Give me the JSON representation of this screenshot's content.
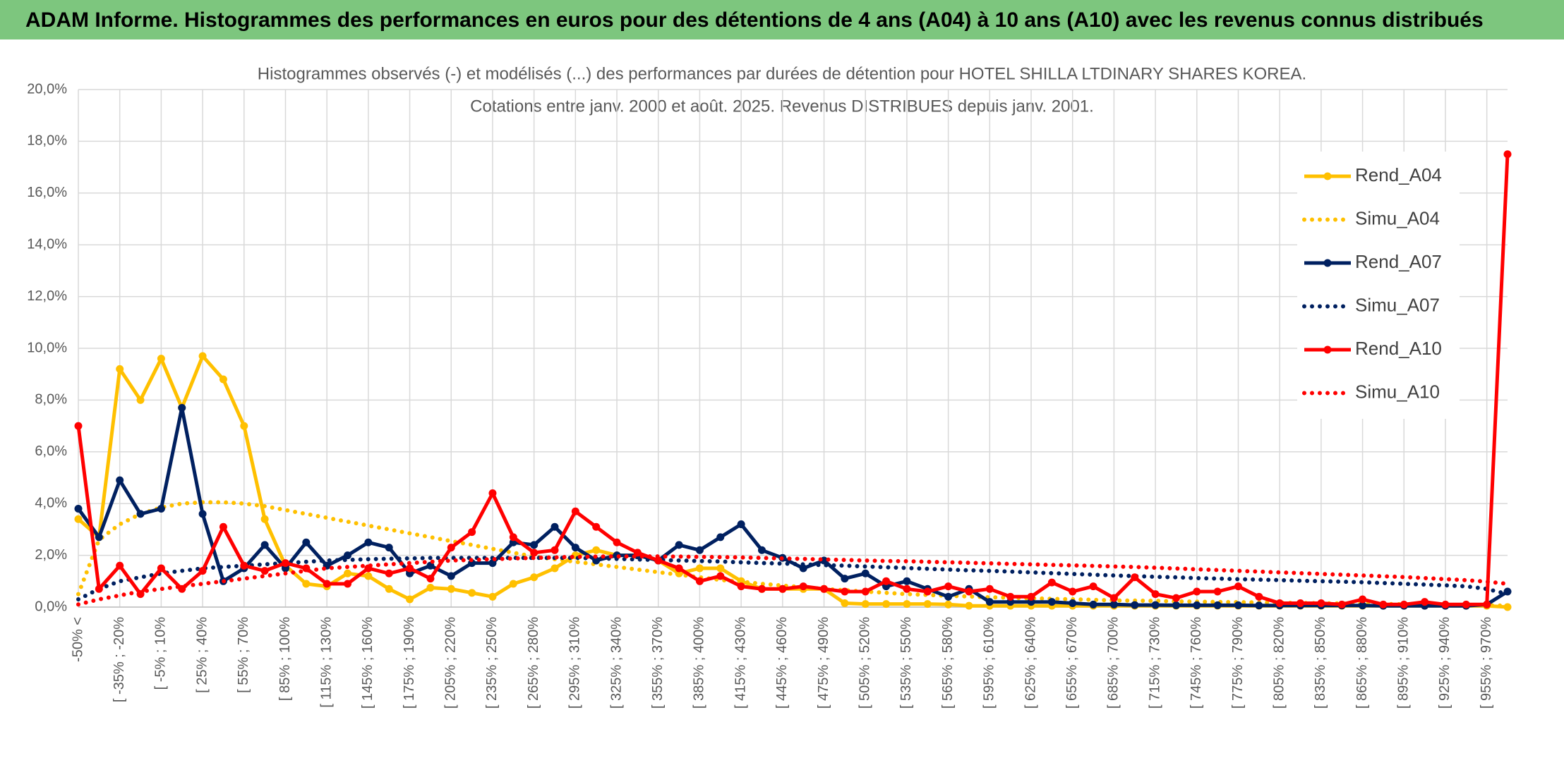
{
  "header": {
    "title": "ADAM Informe. Histogrammes des performances en euros pour des détentions de 4 ans (A04) à 10 ans (A10) avec les revenus connus distribués"
  },
  "chart_data": {
    "type": "line",
    "title": "Histogrammes observés (-) et modélisés (...) des performances par durées de détention pour HOTEL SHILLA LTDINARY SHARES KOREA.",
    "subtitle": "Cotations entre janv. 2000 et août. 2025. Revenus DISTRIBUES depuis janv. 2001.",
    "categories": [
      "-50% <",
      null,
      "[ -35% ; -20%",
      null,
      "[ -5% ; 10%",
      null,
      "[ 25% ; 40%",
      null,
      "[ 55% ; 70%",
      null,
      "[ 85% ; 100%",
      null,
      "[ 115% ; 130%",
      null,
      "[ 145% ; 160%",
      null,
      "[ 175% ; 190%",
      null,
      "[ 205% ; 220%",
      null,
      "[ 235% ; 250%",
      null,
      "[ 265% ; 280%",
      null,
      "[ 295% ; 310%",
      null,
      "[ 325% ; 340%",
      null,
      "[ 355% ; 370%",
      null,
      "[ 385% ; 400%",
      null,
      "[ 415% ; 430%",
      null,
      "[ 445% ; 460%",
      null,
      "[ 475% ; 490%",
      null,
      "[ 505% ; 520%",
      null,
      "[ 535% ; 550%",
      null,
      "[ 565% ; 580%",
      null,
      "[ 595% ; 610%",
      null,
      "[ 625% ; 640%",
      null,
      "[ 655% ; 670%",
      null,
      "[ 685% ; 700%",
      null,
      "[ 715% ; 730%",
      null,
      "[ 745% ; 760%",
      null,
      "[ 775% ; 790%",
      null,
      "[ 805% ; 820%",
      null,
      "[ 835% ; 850%",
      null,
      "[ 865% ; 880%",
      null,
      "[ 895% ; 910%",
      null,
      "[ 925% ; 940%",
      null,
      "[ 955% ; 970%",
      null
    ],
    "series": [
      {
        "name": "Rend_A04",
        "color": "#ffc000",
        "style": "solid",
        "markers": true,
        "values": [
          3.4,
          2.7,
          9.2,
          8.0,
          9.6,
          7.7,
          9.7,
          8.8,
          7.0,
          3.4,
          1.6,
          0.9,
          0.8,
          1.3,
          1.2,
          0.7,
          0.3,
          0.75,
          0.7,
          0.55,
          0.4,
          0.9,
          1.15,
          1.5,
          2.0,
          2.2,
          2.0,
          2.0,
          1.8,
          1.3,
          1.5,
          1.5,
          1.0,
          0.7,
          0.7,
          0.7,
          0.7,
          0.15,
          0.12,
          0.12,
          0.12,
          0.12,
          0.1,
          0.05,
          0.05,
          0.05,
          0.05,
          0.05,
          0.05,
          0.05,
          0.05,
          0.05,
          0.05,
          0.05,
          0.05,
          0.05,
          0.05,
          0.05,
          0.05,
          0.05,
          0.05,
          0.05,
          0.05,
          0.05,
          0.05,
          0.05,
          0.05,
          0.05,
          0.05,
          0.0
        ]
      },
      {
        "name": "Simu_A04",
        "color": "#ffc000",
        "style": "dotted",
        "markers": false,
        "values": [
          0.5,
          2.6,
          3.2,
          3.6,
          3.85,
          4.0,
          4.05,
          4.05,
          4.0,
          3.9,
          3.75,
          3.6,
          3.45,
          3.3,
          3.15,
          3.0,
          2.85,
          2.7,
          2.55,
          2.4,
          2.25,
          2.1,
          1.95,
          1.85,
          1.75,
          1.65,
          1.55,
          1.45,
          1.35,
          1.25,
          1.15,
          1.05,
          0.98,
          0.9,
          0.83,
          0.77,
          0.7,
          0.65,
          0.6,
          0.55,
          0.5,
          0.47,
          0.44,
          0.41,
          0.38,
          0.36,
          0.34,
          0.32,
          0.3,
          0.28,
          0.26,
          0.25,
          0.24,
          0.22,
          0.21,
          0.2,
          0.19,
          0.18,
          0.17,
          0.16,
          0.15,
          0.14,
          0.13,
          0.12,
          0.11,
          0.1,
          0.09,
          0.08,
          0.07,
          0.05
        ]
      },
      {
        "name": "Rend_A07",
        "color": "#002060",
        "style": "solid",
        "markers": true,
        "values": [
          3.8,
          2.7,
          4.9,
          3.6,
          3.8,
          7.7,
          3.6,
          1.0,
          1.5,
          2.4,
          1.5,
          2.5,
          1.6,
          2.0,
          2.5,
          2.3,
          1.3,
          1.6,
          1.2,
          1.7,
          1.7,
          2.5,
          2.4,
          3.1,
          2.3,
          1.8,
          2.0,
          2.0,
          1.8,
          2.4,
          2.2,
          2.7,
          3.2,
          2.2,
          1.9,
          1.5,
          1.8,
          1.1,
          1.3,
          0.8,
          1.0,
          0.7,
          0.4,
          0.7,
          0.2,
          0.2,
          0.2,
          0.2,
          0.15,
          0.1,
          0.1,
          0.08,
          0.08,
          0.07,
          0.07,
          0.07,
          0.07,
          0.06,
          0.06,
          0.06,
          0.06,
          0.06,
          0.06,
          0.05,
          0.05,
          0.05,
          0.05,
          0.05,
          0.1,
          0.6
        ]
      },
      {
        "name": "Simu_A07",
        "color": "#002060",
        "style": "dotted",
        "markers": false,
        "values": [
          0.3,
          0.7,
          1.0,
          1.15,
          1.3,
          1.4,
          1.5,
          1.55,
          1.6,
          1.65,
          1.7,
          1.75,
          1.8,
          1.82,
          1.85,
          1.87,
          1.88,
          1.9,
          1.9,
          1.9,
          1.9,
          1.9,
          1.9,
          1.9,
          1.9,
          1.88,
          1.86,
          1.84,
          1.82,
          1.8,
          1.78,
          1.76,
          1.73,
          1.7,
          1.68,
          1.65,
          1.62,
          1.6,
          1.57,
          1.54,
          1.51,
          1.48,
          1.45,
          1.42,
          1.4,
          1.37,
          1.34,
          1.31,
          1.28,
          1.25,
          1.22,
          1.2,
          1.17,
          1.15,
          1.12,
          1.1,
          1.08,
          1.06,
          1.04,
          1.02,
          1.0,
          0.98,
          0.96,
          0.93,
          0.9,
          0.87,
          0.84,
          0.8,
          0.7,
          0.5
        ]
      },
      {
        "name": "Rend_A10",
        "color": "#ff0000",
        "style": "solid",
        "markers": true,
        "values": [
          7.0,
          0.7,
          1.6,
          0.5,
          1.5,
          0.7,
          1.4,
          3.1,
          1.6,
          1.4,
          1.7,
          1.5,
          0.9,
          0.9,
          1.5,
          1.3,
          1.5,
          1.1,
          2.3,
          2.9,
          4.4,
          2.7,
          2.1,
          2.2,
          3.7,
          3.1,
          2.5,
          2.1,
          1.8,
          1.5,
          1.0,
          1.2,
          0.8,
          0.7,
          0.7,
          0.8,
          0.7,
          0.6,
          0.6,
          1.0,
          0.7,
          0.6,
          0.8,
          0.6,
          0.7,
          0.4,
          0.4,
          0.95,
          0.6,
          0.8,
          0.35,
          1.15,
          0.5,
          0.35,
          0.6,
          0.6,
          0.8,
          0.4,
          0.15,
          0.15,
          0.15,
          0.1,
          0.3,
          0.1,
          0.1,
          0.2,
          0.1,
          0.1,
          0.1,
          17.5
        ]
      },
      {
        "name": "Simu_A10",
        "color": "#ff0000",
        "style": "dotted",
        "markers": false,
        "values": [
          0.1,
          0.3,
          0.45,
          0.6,
          0.7,
          0.8,
          0.9,
          1.0,
          1.1,
          1.2,
          1.3,
          1.4,
          1.5,
          1.55,
          1.6,
          1.65,
          1.7,
          1.75,
          1.8,
          1.82,
          1.85,
          1.88,
          1.9,
          1.92,
          1.94,
          1.95,
          1.96,
          1.96,
          1.96,
          1.95,
          1.94,
          1.93,
          1.92,
          1.9,
          1.88,
          1.86,
          1.84,
          1.82,
          1.8,
          1.78,
          1.77,
          1.75,
          1.73,
          1.71,
          1.69,
          1.67,
          1.65,
          1.63,
          1.61,
          1.59,
          1.57,
          1.55,
          1.52,
          1.49,
          1.46,
          1.43,
          1.4,
          1.37,
          1.34,
          1.31,
          1.28,
          1.25,
          1.22,
          1.19,
          1.16,
          1.12,
          1.08,
          1.04,
          0.98,
          0.9
        ]
      }
    ],
    "ylim": [
      0,
      20
    ],
    "yticks": [
      {
        "value": 0,
        "label": "0,0%"
      },
      {
        "value": 2,
        "label": "2,0%"
      },
      {
        "value": 4,
        "label": "4,0%"
      },
      {
        "value": 6,
        "label": "6,0%"
      },
      {
        "value": 8,
        "label": "8,0%"
      },
      {
        "value": 10,
        "label": "10,0%"
      },
      {
        "value": 12,
        "label": "12,0%"
      },
      {
        "value": 14,
        "label": "14,0%"
      },
      {
        "value": 16,
        "label": "16,0%"
      },
      {
        "value": 18,
        "label": "18,0%"
      },
      {
        "value": 20,
        "label": "20,0%"
      }
    ],
    "grid": true,
    "legend": "right"
  }
}
